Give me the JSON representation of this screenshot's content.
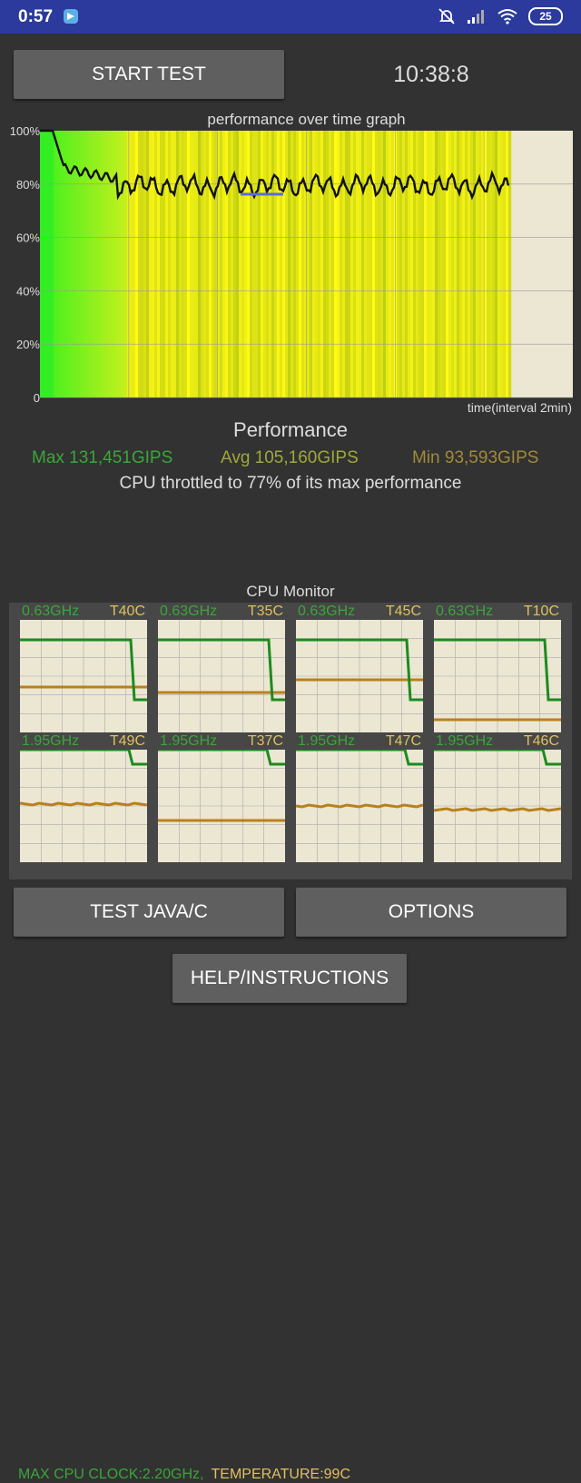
{
  "status_bar": {
    "time": "0:57",
    "battery": "25"
  },
  "controls": {
    "start_label": "START TEST",
    "clock": "10:38:8",
    "java_label": "TEST JAVA/C",
    "options_label": "OPTIONS",
    "help_label": "HELP/INSTRUCTIONS"
  },
  "graph": {
    "title": "performance over time graph",
    "y_ticks": [
      "100%",
      "80%",
      "60%",
      "40%",
      "20%",
      "0"
    ],
    "x_label": "time(interval 2min)"
  },
  "performance": {
    "title": "Performance",
    "max": "Max 131,451GIPS",
    "avg": "Avg 105,160GIPS",
    "min": "Min 93,593GIPS",
    "throttle": "CPU throttled to 77% of its max performance"
  },
  "cpu_monitor": {
    "title": "CPU Monitor",
    "cores": [
      {
        "freq": "0.63GHz",
        "temp": "T40C"
      },
      {
        "freq": "0.63GHz",
        "temp": "T35C"
      },
      {
        "freq": "0.63GHz",
        "temp": "T45C"
      },
      {
        "freq": "0.63GHz",
        "temp": "T10C"
      },
      {
        "freq": "1.95GHz",
        "temp": "T49C"
      },
      {
        "freq": "1.95GHz",
        "temp": "T37C"
      },
      {
        "freq": "1.95GHz",
        "temp": "T47C"
      },
      {
        "freq": "1.95GHz",
        "temp": "T46C"
      }
    ],
    "max_clock": "MAX CPU CLOCK:2.20GHz,",
    "temperature": "TEMPERATURE:99C"
  },
  "colors": {
    "status_bar": "#2b3a9c",
    "background": "#323232",
    "button": "#5f5f5f",
    "freq_green": "#3aa63a",
    "temp_yellow": "#e0c060"
  }
}
